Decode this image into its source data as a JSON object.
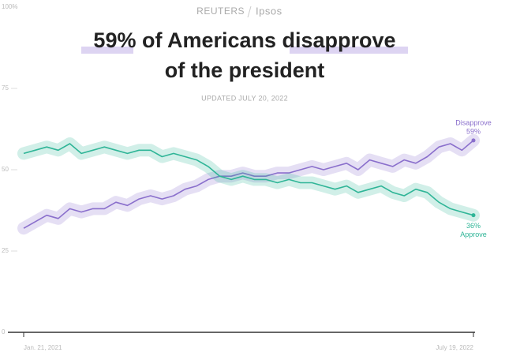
{
  "header": {
    "brand": "REUTERS",
    "partner": "Ipsos"
  },
  "chart_data": {
    "type": "line",
    "title_lines": [
      "59% of Americans disapprove",
      "of the president"
    ],
    "subtitle": "UPDATED JULY 20, 2022",
    "categories": [
      "Jan. 21, 2021",
      null,
      null,
      null,
      null,
      null,
      null,
      null,
      null,
      null,
      null,
      null,
      null,
      null,
      null,
      null,
      null,
      null,
      null,
      null,
      null,
      null,
      null,
      null,
      null,
      null,
      null,
      null,
      null,
      null,
      null,
      null,
      null,
      null,
      null,
      null,
      null,
      null,
      null,
      "July 19, 2022"
    ],
    "ylim": [
      0,
      100
    ],
    "yticks": [
      0,
      25,
      50,
      75,
      {
        "value": 100,
        "label": "100%"
      }
    ],
    "grid": false,
    "series": [
      {
        "name": "Disapprove",
        "color": "#8a6fcc",
        "values": [
          32,
          34,
          36,
          35,
          38,
          37,
          38,
          38,
          40,
          39,
          41,
          42,
          41,
          42,
          44,
          45,
          47,
          48,
          48,
          49,
          48,
          48,
          49,
          49,
          50,
          51,
          50,
          51,
          52,
          50,
          53,
          52,
          51,
          53,
          52,
          54,
          57,
          58,
          56,
          59
        ],
        "value_labels": [
          null,
          null,
          null,
          null,
          null,
          null,
          null,
          null,
          null,
          null,
          null,
          null,
          null,
          null,
          null,
          null,
          null,
          null,
          null,
          null,
          null,
          null,
          null,
          null,
          null,
          null,
          null,
          null,
          null,
          null,
          null,
          null,
          null,
          null,
          null,
          null,
          null,
          null,
          null,
          "59%"
        ]
      },
      {
        "name": "Approve",
        "color": "#2fb597",
        "values": [
          55,
          56,
          57,
          56,
          58,
          55,
          56,
          57,
          56,
          55,
          56,
          56,
          54,
          55,
          54,
          53,
          51,
          48,
          47,
          48,
          47,
          47,
          46,
          47,
          46,
          46,
          45,
          44,
          45,
          43,
          44,
          45,
          43,
          42,
          44,
          43,
          40,
          38,
          37,
          36
        ],
        "value_labels": [
          null,
          null,
          null,
          null,
          null,
          null,
          null,
          null,
          null,
          null,
          null,
          null,
          null,
          null,
          null,
          null,
          null,
          null,
          null,
          null,
          null,
          null,
          null,
          null,
          null,
          null,
          null,
          null,
          null,
          null,
          null,
          null,
          null,
          null,
          null,
          null,
          null,
          null,
          null,
          "36%"
        ]
      }
    ]
  }
}
